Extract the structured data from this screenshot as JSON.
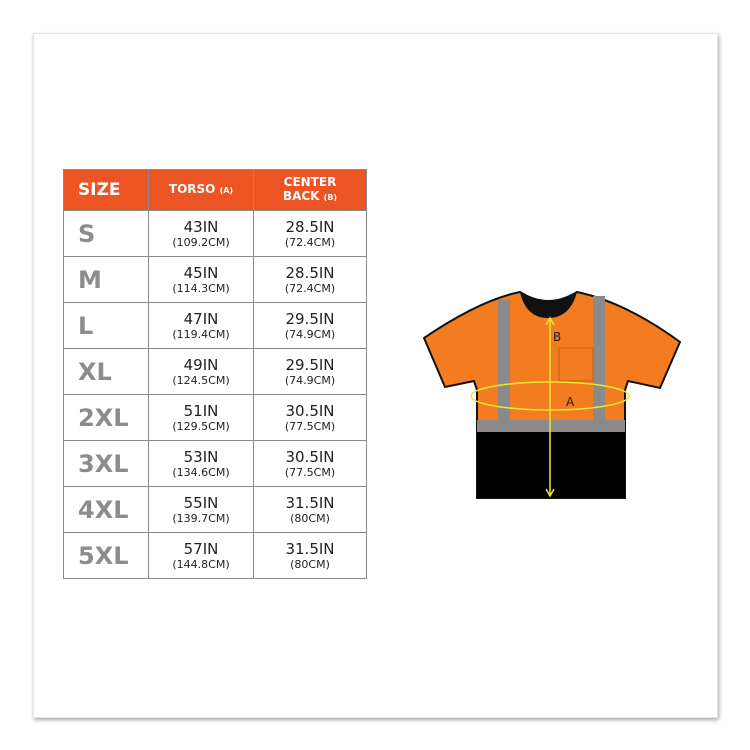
{
  "headers": {
    "size": "SIZE",
    "torso": "TORSO",
    "torso_tag": "(A)",
    "center1": "CENTER",
    "center2": "BACK",
    "center_tag": "(B)"
  },
  "rows": [
    {
      "size": "S",
      "torso_in": "43IN",
      "torso_cm": "(109.2CM)",
      "back_in": "28.5IN",
      "back_cm": "(72.4CM)"
    },
    {
      "size": "M",
      "torso_in": "45IN",
      "torso_cm": "(114.3CM)",
      "back_in": "28.5IN",
      "back_cm": "(72.4CM)"
    },
    {
      "size": "L",
      "torso_in": "47IN",
      "torso_cm": "(119.4CM)",
      "back_in": "29.5IN",
      "back_cm": "(74.9CM)"
    },
    {
      "size": "XL",
      "torso_in": "49IN",
      "torso_cm": "(124.5CM)",
      "back_in": "29.5IN",
      "back_cm": "(74.9CM)"
    },
    {
      "size": "2XL",
      "torso_in": "51IN",
      "torso_cm": "(129.5CM)",
      "back_in": "30.5IN",
      "back_cm": "(77.5CM)"
    },
    {
      "size": "3XL",
      "torso_in": "53IN",
      "torso_cm": "(134.6CM)",
      "back_in": "30.5IN",
      "back_cm": "(77.5CM)"
    },
    {
      "size": "4XL",
      "torso_in": "55IN",
      "torso_cm": "(139.7CM)",
      "back_in": "31.5IN",
      "back_cm": "(80CM)"
    },
    {
      "size": "5XL",
      "torso_in": "57IN",
      "torso_cm": "(144.8CM)",
      "back_in": "31.5IN",
      "back_cm": "(80CM)"
    }
  ],
  "diagram": {
    "label_a": "A",
    "label_b": "B"
  },
  "colors": {
    "header": "#ed5424",
    "shirt": "#f47c20",
    "stripe": "#8a8a8a",
    "measure": "#e8e830"
  }
}
